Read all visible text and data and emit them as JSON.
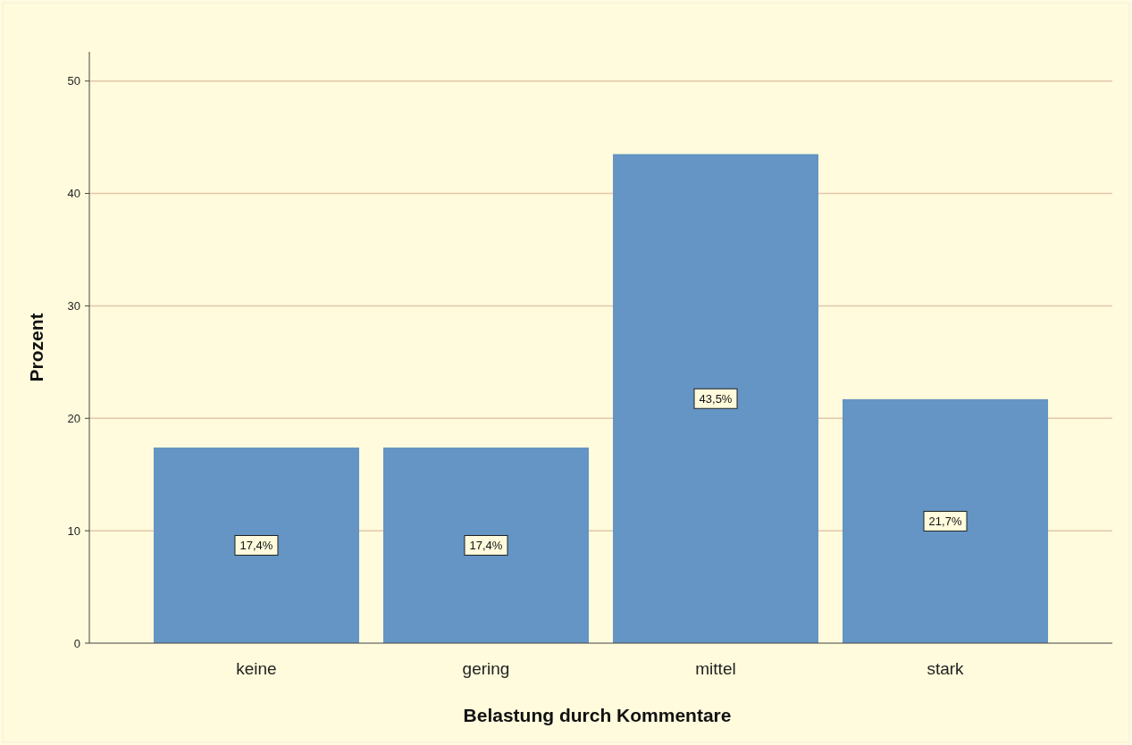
{
  "chart_data": {
    "type": "bar",
    "xlabel": "Belastung durch Kommentare",
    "ylabel": "Prozent",
    "categories": [
      "keine",
      "gering",
      "mittel",
      "stark"
    ],
    "values": [
      17.4,
      17.4,
      43.5,
      21.7
    ],
    "value_labels": [
      "17,4%",
      "17,4%",
      "43,5%",
      "21,7%"
    ],
    "color": "#6495c4",
    "ylim": [
      0,
      52.6
    ],
    "yticks": [
      0,
      10,
      20,
      30,
      40,
      50
    ],
    "grid": "y"
  }
}
